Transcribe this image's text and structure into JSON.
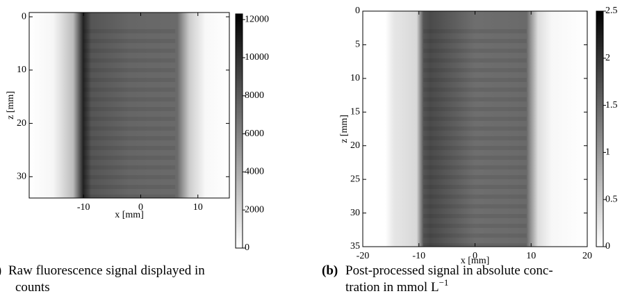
{
  "chart_data": [
    {
      "type": "heatmap",
      "xlabel": "x [mm]",
      "ylabel": "z [mm]",
      "xlim": [
        -19.5,
        15.5
      ],
      "xticks": [
        -10,
        0,
        10
      ],
      "ylim": [
        34,
        -0.8
      ],
      "yticks": [
        0,
        10,
        20,
        30
      ],
      "colorbar_lim": [
        0,
        12300
      ],
      "colorbar_ticks": [
        0,
        2000,
        4000,
        6000,
        8000,
        10000,
        12000
      ],
      "caption_label": "(a)",
      "caption_lines": [
        "Raw fluorescence signal displayed in",
        "counts"
      ]
    },
    {
      "type": "heatmap",
      "xlabel": "x [mm]",
      "ylabel": "z [mm]",
      "xlim": [
        -20,
        20
      ],
      "xticks": [
        -20,
        -10,
        0,
        10,
        20
      ],
      "ylim": [
        35,
        0
      ],
      "yticks": [
        0,
        5,
        10,
        15,
        20,
        25,
        30,
        35
      ],
      "colorbar_lim": [
        0,
        2.5
      ],
      "colorbar_ticks": [
        0,
        0.5,
        1,
        1.5,
        2,
        2.5
      ],
      "caption_label": "(b)",
      "caption_lines": [
        "Post-processed signal in absolute conc-",
        "tration in mmol L"
      ],
      "caption_superscript": "−1"
    }
  ]
}
